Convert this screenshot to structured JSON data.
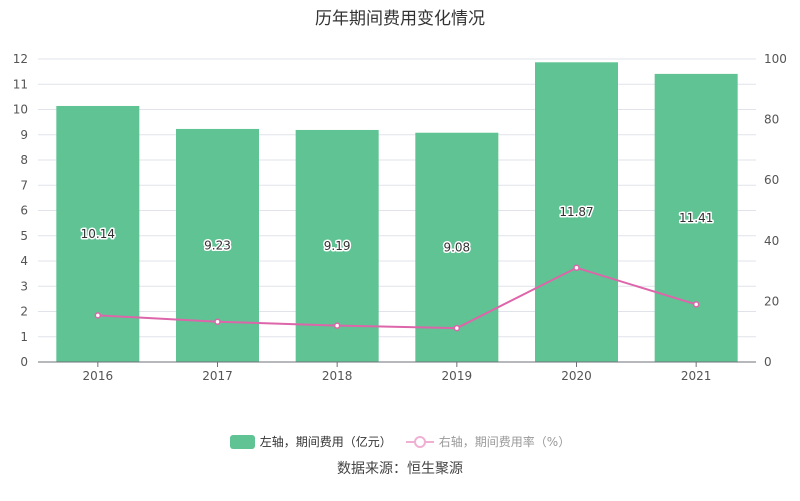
{
  "chart_data": {
    "type": "bar",
    "title": "历年期间费用变化情况",
    "categories": [
      "2016",
      "2017",
      "2018",
      "2019",
      "2020",
      "2021"
    ],
    "series": [
      {
        "name": "左轴，期间费用（亿元）",
        "type": "bar",
        "axis": "left",
        "color": "#5fc393",
        "values": [
          10.14,
          9.23,
          9.19,
          9.08,
          11.87,
          11.41
        ],
        "labels": [
          "10.14",
          "9.23",
          "9.19",
          "9.08",
          "11.87",
          "11.41"
        ]
      },
      {
        "name": "右轴，期间费用率（%）",
        "type": "line",
        "axis": "right",
        "color": "#dd66aa",
        "values": [
          15.4,
          13.3,
          12.0,
          11.2,
          31.1,
          19.0
        ]
      }
    ],
    "left_axis": {
      "min": 0,
      "max": 12,
      "ticks": [
        "0",
        "1",
        "2",
        "3",
        "4",
        "5",
        "6",
        "7",
        "8",
        "9",
        "10",
        "11",
        "12"
      ]
    },
    "right_axis": {
      "min": 0,
      "max": 100,
      "ticks": [
        "0",
        "20",
        "40",
        "60",
        "80",
        "100"
      ]
    },
    "grid": true,
    "legend_position": "bottom"
  },
  "source": "数据来源：恒生聚源"
}
